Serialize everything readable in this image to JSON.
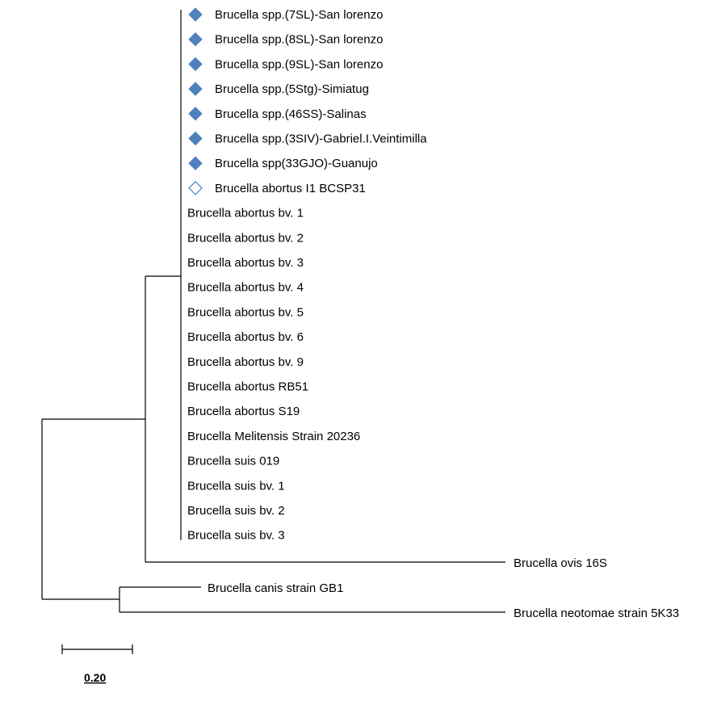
{
  "tree": {
    "clade_taxa": [
      {
        "label": "Brucella spp.(7SL)-San lorenzo",
        "marker": "filled-diamond"
      },
      {
        "label": "Brucella spp.(8SL)-San lorenzo",
        "marker": "filled-diamond"
      },
      {
        "label": "Brucella spp.(9SL)-San lorenzo",
        "marker": "filled-diamond"
      },
      {
        "label": "Brucella spp.(5Stg)-Simiatug",
        "marker": "filled-diamond"
      },
      {
        "label": "Brucella spp.(46SS)-Salinas",
        "marker": "filled-diamond"
      },
      {
        "label": "Brucella spp.(3SIV)-Gabriel.I.Veintimilla",
        "marker": "filled-diamond"
      },
      {
        "label": "Brucella spp(33GJO)-Guanujo",
        "marker": "filled-diamond"
      },
      {
        "label": "Brucella abortus I1 BCSP31",
        "marker": "open-diamond"
      },
      {
        "label": "Brucella abortus bv. 1",
        "marker": "none"
      },
      {
        "label": "Brucella abortus bv. 2",
        "marker": "none"
      },
      {
        "label": "Brucella abortus bv. 3",
        "marker": "none"
      },
      {
        "label": "Brucella abortus bv. 4",
        "marker": "none"
      },
      {
        "label": "Brucella abortus bv. 5",
        "marker": "none"
      },
      {
        "label": "Brucella abortus bv. 6",
        "marker": "none"
      },
      {
        "label": "Brucella abortus bv. 9",
        "marker": "none"
      },
      {
        "label": "Brucella abortus RB51",
        "marker": "none"
      },
      {
        "label": "Brucella abortus S19",
        "marker": "none"
      },
      {
        "label": "Brucella Melitensis Strain 20236",
        "marker": "none"
      },
      {
        "label": "Brucella suis 019",
        "marker": "none"
      },
      {
        "label": "Brucella suis bv. 1",
        "marker": "none"
      },
      {
        "label": "Brucella suis bv. 2",
        "marker": "none"
      },
      {
        "label": "Brucella suis bv. 3",
        "marker": "none"
      }
    ],
    "outgroup_taxa": {
      "ovis": "Brucella ovis 16S",
      "canis": "Brucella canis strain GB1",
      "neotomae": "Brucella neotomae strain 5K33"
    },
    "scale_bar_label": "0.20",
    "marker_color": "#4f81bd"
  }
}
